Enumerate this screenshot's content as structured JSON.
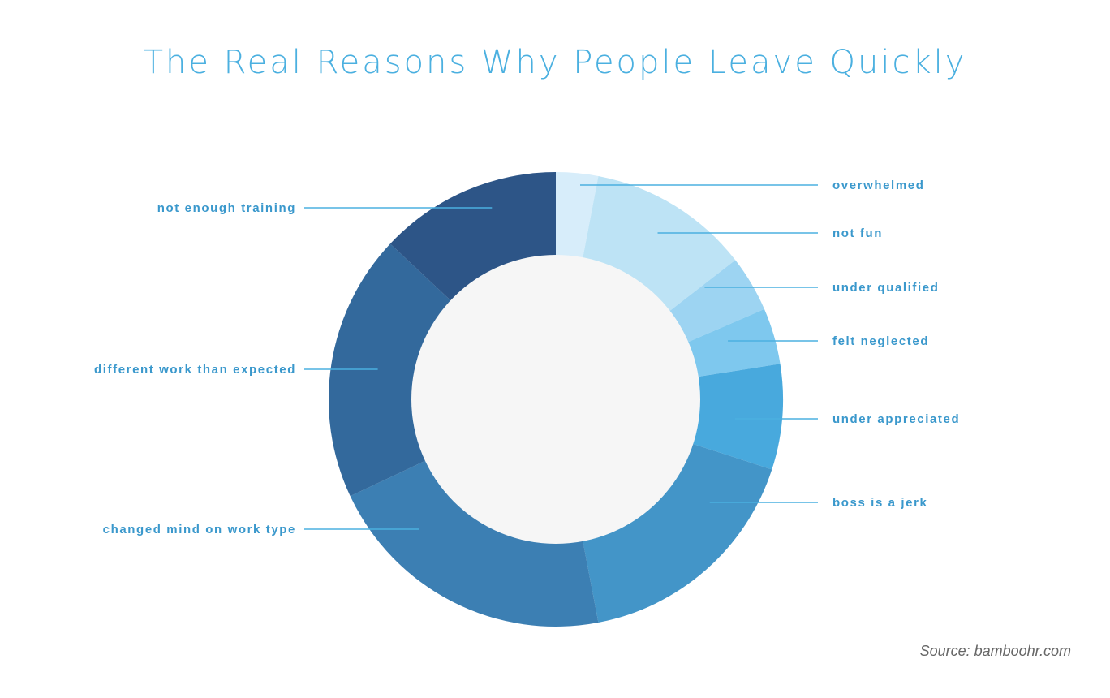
{
  "colors": {
    "title": "#4bb0e0",
    "label": "#3a98cc",
    "leader": "#4bb0e0",
    "center": "#f6f6f6",
    "source": "#666666"
  },
  "chart_data": {
    "type": "pie",
    "title": "The Real Reasons Why People Leave Quickly",
    "source": "Source: bamboohr.com",
    "donut": true,
    "slices": [
      {
        "label": "overwhelmed",
        "value": 3,
        "color": "#d7edfa"
      },
      {
        "label": "not fun",
        "value": 11.5,
        "color": "#bde3f5"
      },
      {
        "label": "under qualified",
        "value": 4,
        "color": "#9dd4f2"
      },
      {
        "label": "felt neglected",
        "value": 4,
        "color": "#7ec8ee"
      },
      {
        "label": "under appreciated",
        "value": 7.5,
        "color": "#48a9dd"
      },
      {
        "label": "boss is a jerk",
        "value": 17,
        "color": "#4395c8"
      },
      {
        "label": "changed mind on work type",
        "value": 21,
        "color": "#3c7fb3"
      },
      {
        "label": "different work than expected",
        "value": 19,
        "color": "#33699c"
      },
      {
        "label": "not enough training",
        "value": 13,
        "color": "#2d5587"
      }
    ]
  }
}
